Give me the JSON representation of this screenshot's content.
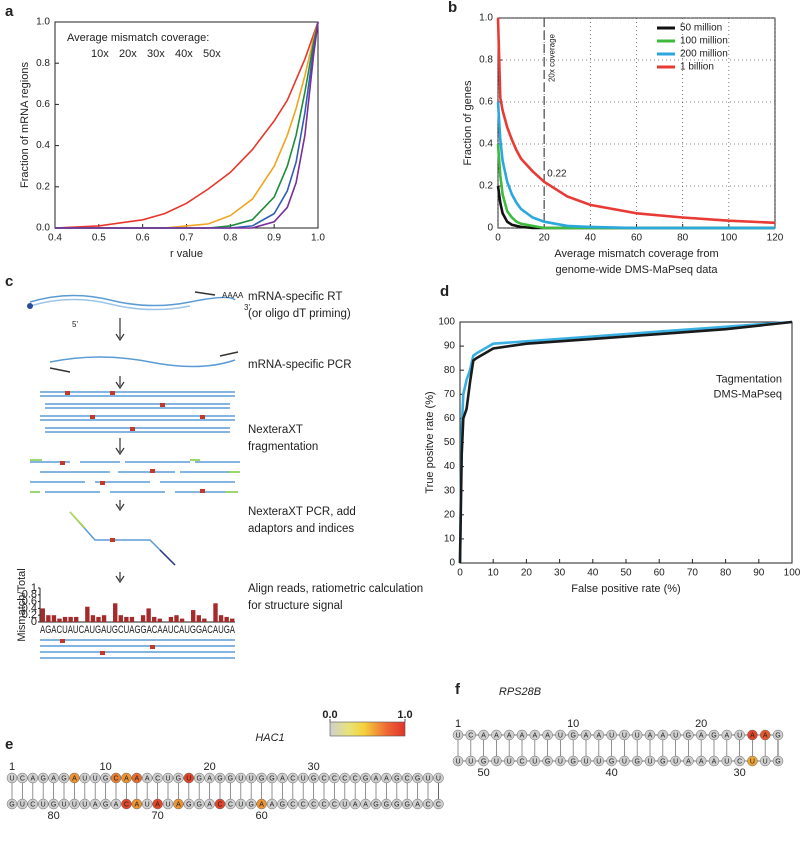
{
  "chart_data": [
    {
      "type": "line",
      "label": "a",
      "ylabel": "Fraction of mRNA regions",
      "xlabel": "r value",
      "legend_title": "Average mismatch coverage:",
      "legend": "upper left",
      "grid": false,
      "x": [
        0.4,
        0.5,
        0.6,
        0.65,
        0.7,
        0.75,
        0.8,
        0.85,
        0.9,
        0.93,
        0.95,
        0.97,
        0.99,
        1.0
      ],
      "series": [
        {
          "name": "10x",
          "color": "#e8362a",
          "values": [
            0,
            0.01,
            0.04,
            0.07,
            0.12,
            0.19,
            0.27,
            0.38,
            0.52,
            0.62,
            0.72,
            0.82,
            0.94,
            1.0
          ]
        },
        {
          "name": "20x",
          "color": "#f2a41e",
          "values": [
            0,
            0,
            0,
            0,
            0.01,
            0.02,
            0.06,
            0.14,
            0.3,
            0.45,
            0.58,
            0.74,
            0.92,
            1.0
          ]
        },
        {
          "name": "30x",
          "color": "#1e8c3a",
          "values": [
            0,
            0,
            0,
            0,
            0,
            0,
            0.01,
            0.04,
            0.15,
            0.3,
            0.45,
            0.66,
            0.9,
            1.0
          ]
        },
        {
          "name": "40x",
          "color": "#2f5fb3",
          "values": [
            0,
            0,
            0,
            0,
            0,
            0,
            0,
            0.01,
            0.07,
            0.18,
            0.32,
            0.56,
            0.87,
            1.0
          ]
        },
        {
          "name": "50x",
          "color": "#7a2f9a",
          "values": [
            0,
            0,
            0,
            0,
            0,
            0,
            0,
            0,
            0.03,
            0.1,
            0.22,
            0.45,
            0.84,
            1.0
          ]
        }
      ],
      "xlim": [
        0.4,
        1.0
      ],
      "xticks": [
        0.4,
        0.5,
        0.6,
        0.7,
        0.8,
        0.9,
        {
          "value": 1.0,
          "label": "1.0"
        }
      ],
      "ylim": [
        0,
        1.0
      ],
      "yticks": [
        {
          "value": 0,
          "label": "0.0"
        },
        0.2,
        0.4,
        0.6,
        0.8,
        {
          "value": 1.0,
          "label": "1.0"
        }
      ]
    },
    {
      "type": "line",
      "label": "b",
      "ylabel": "Fraction of genes",
      "xlabel": [
        "Average mismatch coverage from",
        "genome-wide DMS-MaPseq data"
      ],
      "legend": "upper right",
      "grid": true,
      "vline": {
        "x": 20,
        "label": "20x coverage"
      },
      "annotations": [
        {
          "text": "0.22",
          "x": 20,
          "y": 0.22
        }
      ],
      "x": [
        0,
        1,
        2,
        4,
        6,
        8,
        10,
        15,
        20,
        30,
        40,
        60,
        80,
        100,
        120
      ],
      "series": [
        {
          "name": "50 million",
          "color": "#111111",
          "values": [
            0.2,
            0.12,
            0.07,
            0.03,
            0.015,
            0.01,
            0.005,
            0,
            0,
            0,
            0,
            0,
            0,
            0,
            0
          ]
        },
        {
          "name": "100 million",
          "color": "#3dbb3d",
          "values": [
            0.4,
            0.25,
            0.16,
            0.08,
            0.05,
            0.03,
            0.02,
            0.01,
            0,
            0,
            0,
            0,
            0,
            0,
            0
          ]
        },
        {
          "name": "200 million",
          "color": "#2aa8de",
          "values": [
            0.6,
            0.42,
            0.32,
            0.22,
            0.16,
            0.12,
            0.09,
            0.05,
            0.03,
            0.01,
            0.005,
            0,
            0,
            0,
            0
          ]
        },
        {
          "name": "1 billion",
          "color": "#e83b35",
          "values": [
            1.0,
            0.62,
            0.56,
            0.48,
            0.42,
            0.37,
            0.33,
            0.27,
            0.22,
            0.15,
            0.11,
            0.07,
            0.05,
            0.035,
            0.025
          ]
        }
      ],
      "xlim": [
        0,
        120
      ],
      "xticks": [
        0,
        20,
        40,
        60,
        80,
        100,
        120
      ],
      "ylim": [
        0,
        1.0
      ],
      "yticks": [
        0,
        0.2,
        0.4,
        0.6,
        0.8,
        {
          "value": 1.0,
          "label": "1.0"
        }
      ]
    },
    {
      "type": "line",
      "label": "d",
      "ylabel": "True positve rate (%)",
      "xlabel": "False positive rate (%)",
      "legend": "center right",
      "grid": false,
      "x": [
        0,
        0.5,
        1,
        2,
        3,
        4,
        5,
        10,
        20,
        40,
        60,
        80,
        100
      ],
      "series": [
        {
          "name": "Tagmentation",
          "color": "#3ab0e2",
          "values": [
            0,
            55,
            70,
            76,
            80,
            86,
            87,
            91,
            92,
            94,
            96,
            98,
            100
          ]
        },
        {
          "name": "DMS-MaPseq",
          "color": "#1a1a1a",
          "values": [
            0,
            45,
            60,
            64,
            75,
            84,
            85,
            89,
            91,
            93,
            95,
            97,
            100
          ]
        }
      ],
      "xlim": [
        0,
        100
      ],
      "xticks": [
        0,
        10,
        20,
        30,
        40,
        50,
        60,
        70,
        80,
        90,
        100
      ],
      "ylim": [
        0,
        100
      ],
      "yticks": [
        0,
        10,
        20,
        30,
        40,
        50,
        60,
        70,
        80,
        90,
        100
      ]
    }
  ],
  "schematic": {
    "label": "c",
    "steps": [
      [
        "mRNA-specific RT",
        "(or oligo dT priming)"
      ],
      [
        "mRNA-specific PCR"
      ],
      [
        "NexteraXT",
        "fragmentation"
      ],
      [
        "NexteraXT PCR, add",
        "adaptors and indices"
      ],
      [
        "Align reads, ratiometric calculation",
        "for structure signal"
      ]
    ],
    "five_prime": "5'",
    "three_prime": "3'",
    "poly_a": "AAAA",
    "signal": {
      "ylabel": "Mismatch/Total",
      "sequence": "AGACUAUCAUGAUGCUAGGACAAUCAUGGACAUGA",
      "ylim": [
        0,
        1
      ],
      "yticks": [
        0,
        0.2,
        0.4,
        0.6,
        0.8,
        1
      ],
      "values": [
        0.4,
        0.2,
        0.2,
        0.1,
        0.15,
        0.15,
        0.15,
        0,
        0.45,
        0.2,
        0.15,
        0.2,
        0,
        0.55,
        0.2,
        0.15,
        0.15,
        0,
        0.2,
        0.4,
        0.15,
        0.1,
        0,
        0.15,
        0.2,
        0.1,
        0,
        0.35,
        0.2,
        0.1,
        0,
        0.55,
        0.2,
        0.15,
        0.1
      ]
    }
  },
  "structure_e": {
    "label": "e",
    "title": "HAC1",
    "sequence": "UCAGAGAUUGCAAACUGUGAGGUUGGACUGCCCCGAAGCGUUCCAGGGGAAUCCCCCGAAGUCCAGGAUAUACAGAUUUGUCUG",
    "reactivity": [
      0,
      0,
      0,
      0,
      0,
      0,
      0.5,
      0,
      0,
      0,
      0.6,
      0.5,
      0.7,
      0,
      0,
      0,
      0,
      0.9,
      0,
      0,
      0,
      0,
      0,
      0,
      0,
      0,
      0,
      0,
      0,
      0,
      0,
      0,
      0,
      0,
      0,
      0,
      0,
      0,
      0,
      0,
      0,
      0,
      0,
      0,
      0,
      0,
      0,
      0,
      0,
      0,
      0,
      0,
      0,
      0,
      0,
      0,
      0,
      0,
      0,
      0.5,
      0,
      0,
      0,
      0.9,
      0,
      0,
      0,
      0.5,
      0,
      0.9,
      0,
      0.5,
      0.9,
      0,
      0,
      0,
      0,
      0,
      0,
      0,
      0,
      0,
      0,
      0
    ],
    "numbering": [
      1,
      10,
      20,
      30,
      60,
      70,
      80
    ],
    "colorbar": {
      "ticks": [
        {
          "value": 0,
          "label": "0.0"
        },
        {
          "value": 1,
          "label": "1.0"
        }
      ]
    }
  },
  "structure_f": {
    "label": "f",
    "title": "RPS28B",
    "sequence": "UCAAAAAAUGAAUUUAAUGAGAUAAGGUUCUAAAUGUGUGUUGUGUCUUGUU",
    "reactivity": [
      0,
      0,
      0,
      0,
      0,
      0,
      0,
      0,
      0,
      0,
      0,
      0,
      0,
      0,
      0,
      0,
      0,
      0,
      0,
      0,
      0,
      0,
      0,
      0.9,
      0.8,
      0,
      0,
      0,
      0.4,
      0,
      0,
      0,
      0,
      0,
      0,
      0,
      0,
      0,
      0,
      0,
      0,
      0,
      0,
      0,
      0,
      0,
      0,
      0,
      0,
      0,
      0,
      0
    ],
    "numbering": [
      1,
      10,
      20,
      30,
      40,
      50
    ]
  }
}
